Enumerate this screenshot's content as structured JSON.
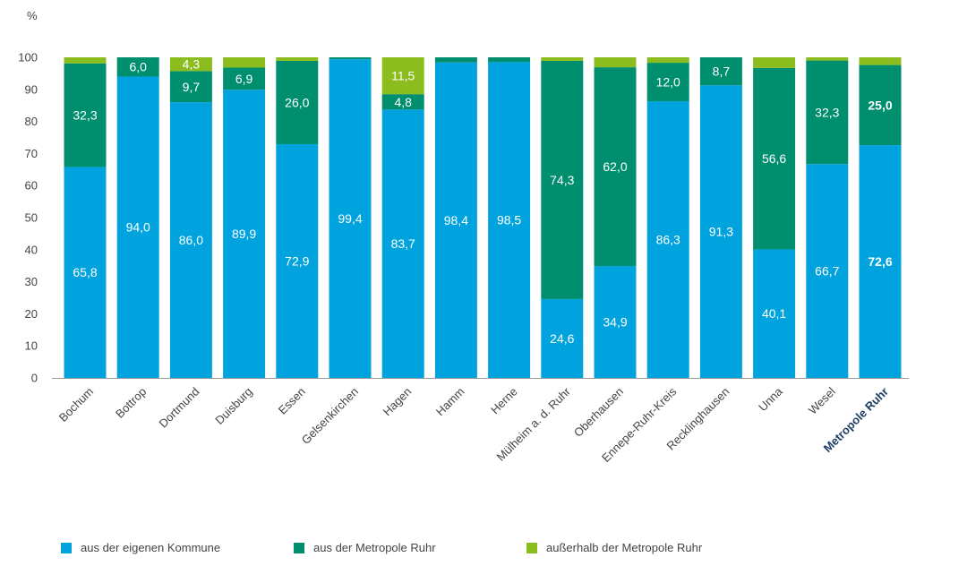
{
  "chart_data": {
    "type": "bar",
    "stacked": true,
    "ylabel": "%",
    "ylim": [
      0,
      100
    ],
    "yticks": [
      0,
      10,
      20,
      30,
      40,
      50,
      60,
      70,
      80,
      90,
      100
    ],
    "categories": [
      "Bochum",
      "Bottrop",
      "Dortmund",
      "Duisburg",
      "Essen",
      "Gelsenkirchen",
      "Hagen",
      "Hamm",
      "Herne",
      "Mülheim a. d. Ruhr",
      "Oberhausen",
      "Ennepe-Ruhr-Kreis",
      "Recklinghausen",
      "Unna",
      "Wesel",
      "Metropole Ruhr"
    ],
    "highlight_category": "Metropole Ruhr",
    "series": [
      {
        "name": "aus der eigenen Kommune",
        "color": "#00a3de",
        "values": [
          65.8,
          94.0,
          86.0,
          89.9,
          72.9,
          99.4,
          83.7,
          98.4,
          98.5,
          24.6,
          34.9,
          86.3,
          91.3,
          40.1,
          66.7,
          72.6
        ],
        "labels": [
          "65,8",
          "94,0",
          "86,0",
          "89,9",
          "72,9",
          "99,4",
          "83,7",
          "98,4",
          "98,5",
          "24,6",
          "34,9",
          "86,3",
          "91,3",
          "40,1",
          "66,7",
          "72,6"
        ]
      },
      {
        "name": "aus der Metropole Ruhr",
        "color": "#008f6e",
        "values": [
          32.3,
          6.0,
          9.7,
          6.9,
          26.0,
          0.6,
          4.8,
          1.6,
          1.5,
          74.3,
          62.0,
          12.0,
          8.7,
          56.6,
          32.3,
          25.0
        ],
        "labels": [
          "32,3",
          "6,0",
          "9,7",
          "6,9",
          "26,0",
          "",
          "4,8",
          "",
          "",
          "74,3",
          "62,0",
          "12,0",
          "8,7",
          "56,6",
          "32,3",
          "25,0"
        ]
      },
      {
        "name": "außerhalb der Metropole Ruhr",
        "color": "#8cbd1e",
        "values": [
          1.9,
          0.0,
          4.3,
          3.2,
          1.1,
          0.0,
          11.5,
          0.0,
          0.0,
          1.1,
          3.1,
          1.7,
          0.0,
          3.3,
          1.0,
          2.4
        ],
        "labels": [
          "",
          "",
          "4,3",
          "",
          "",
          "",
          "11,5",
          "",
          "",
          "",
          "",
          "",
          "",
          "",
          "",
          ""
        ]
      }
    ],
    "legend_position": "bottom"
  }
}
